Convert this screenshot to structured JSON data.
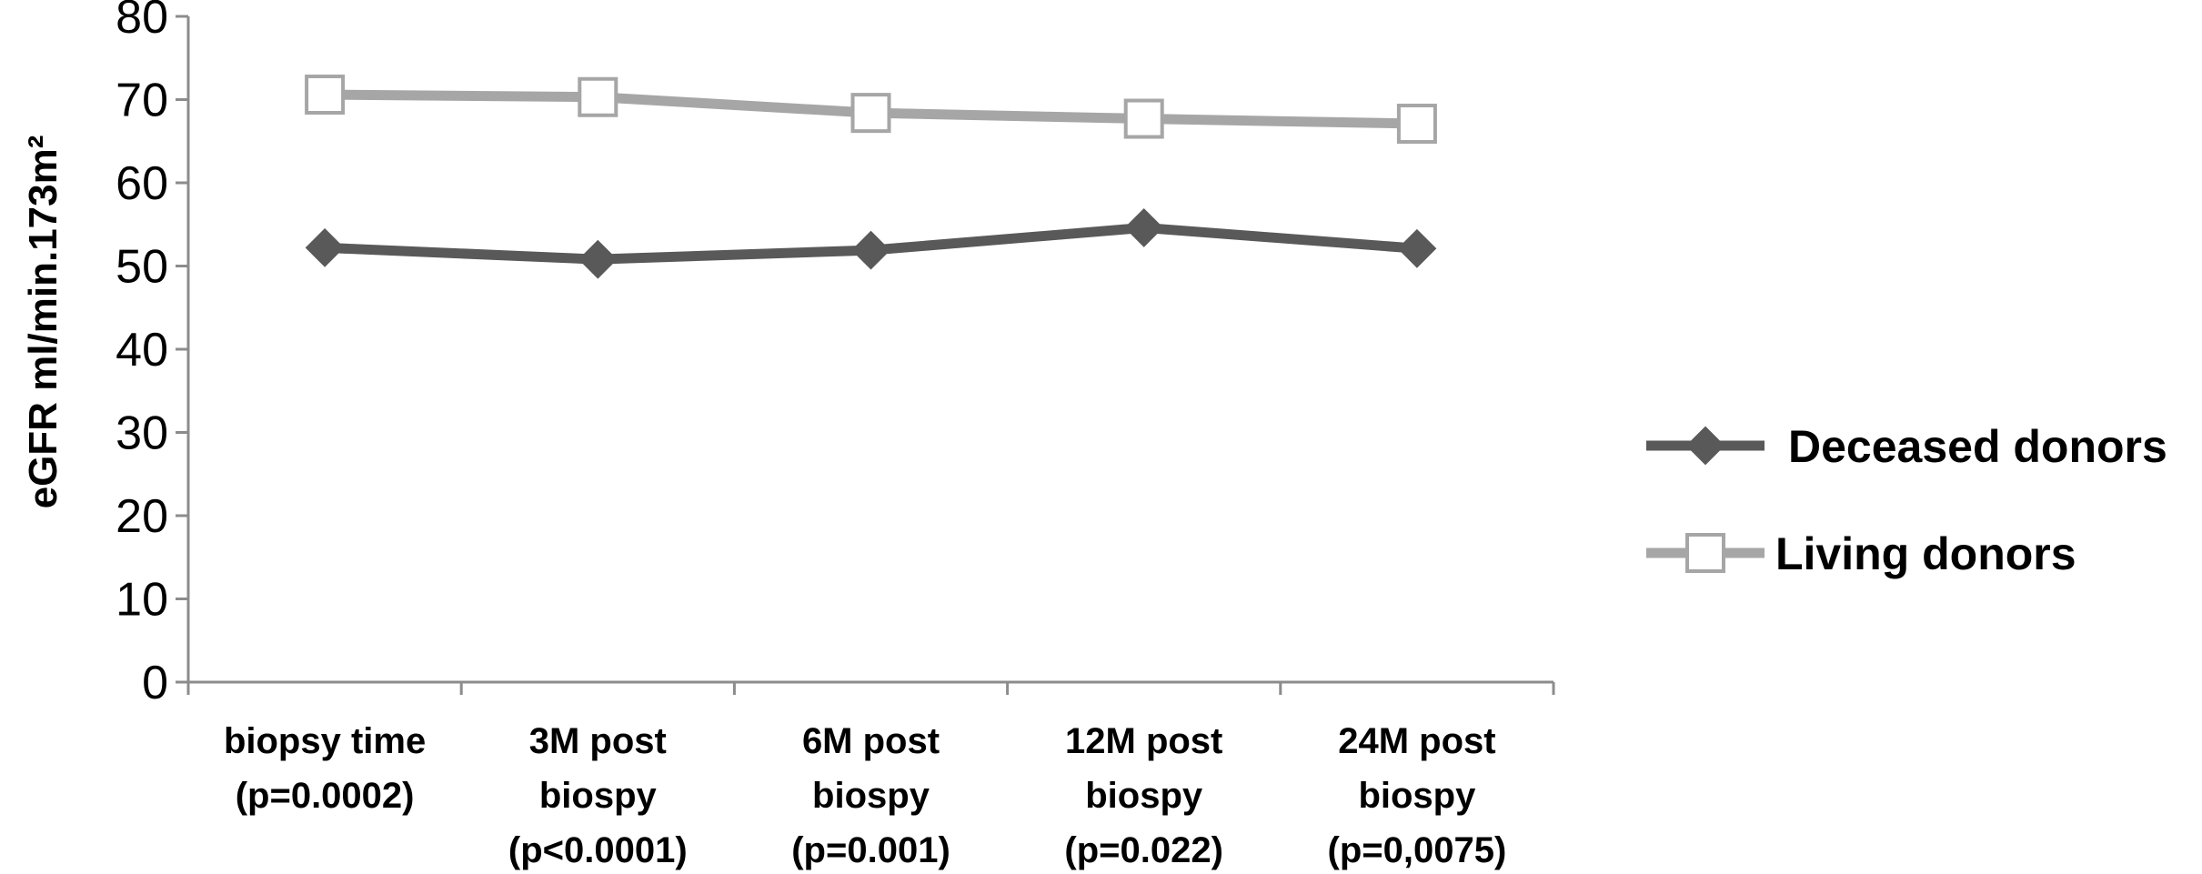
{
  "chart_data": {
    "type": "line",
    "title": "",
    "xlabel": "",
    "ylabel": "eGFR ml/min.173m²",
    "ylim": [
      0,
      80
    ],
    "yticks": [
      0,
      10,
      20,
      30,
      40,
      50,
      60,
      70,
      80
    ],
    "grid": false,
    "legend_position": "right",
    "categories": [
      [
        "biopsy time",
        "(p=0.0002)"
      ],
      [
        "3M post",
        "biospy",
        "(p<0.0001)"
      ],
      [
        "6M post",
        "biospy",
        "(p=0.001)"
      ],
      [
        "12M post",
        "biospy",
        "(p=0.022)"
      ],
      [
        "24M post",
        "biospy",
        "(p=0,0075)"
      ]
    ],
    "series": [
      {
        "name": "Deceased donors",
        "values": [
          52.2,
          50.8,
          51.9,
          54.6,
          52.1
        ],
        "color": "#595959",
        "marker": "diamond"
      },
      {
        "name": "Living donors",
        "values": [
          70.6,
          70.3,
          68.4,
          67.7,
          67.1
        ],
        "color": "#a6a6a6",
        "marker": "square-open"
      }
    ]
  }
}
